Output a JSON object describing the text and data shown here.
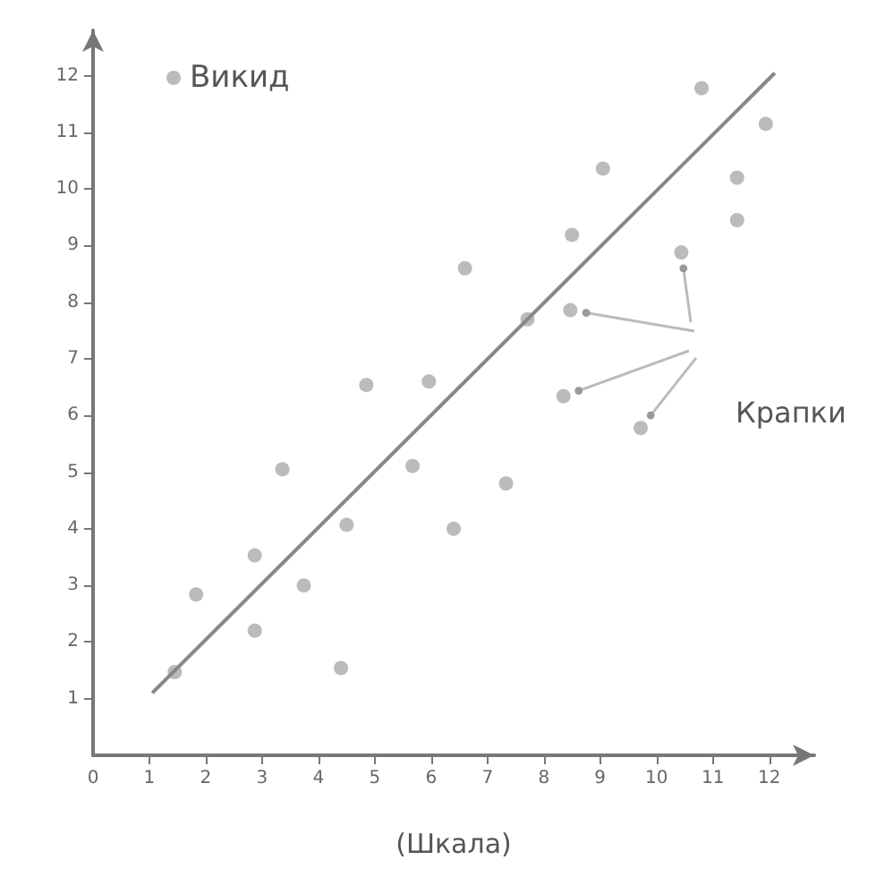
{
  "chart_data": {
    "type": "scatter",
    "xlabel": "(Шкала)",
    "annotations": [
      "Крапки"
    ],
    "xlim": [
      0,
      12.8
    ],
    "ylim": [
      0,
      12.8
    ],
    "xticks": [
      {
        "value": 0,
        "label": "0"
      },
      1,
      2,
      3,
      4,
      5,
      6,
      7,
      8,
      9,
      10,
      11,
      12
    ],
    "yticks": [
      1,
      2,
      3,
      4,
      5,
      6,
      7,
      8,
      9,
      10,
      11,
      12
    ],
    "legend": "top left",
    "grid": false,
    "series": [
      {
        "name": "Викид",
        "color": "#aaaaaa",
        "marker": "circle",
        "x": [
          1.45,
          1.83,
          2.87,
          2.87,
          3.74,
          3.36,
          4.4,
          4.5,
          4.85,
          5.67,
          5.96,
          6.4,
          6.6,
          7.33,
          7.71,
          8.35,
          8.47,
          8.5,
          9.05,
          9.72,
          10.44,
          10.8,
          11.43,
          11.43,
          11.94
        ],
        "values": [
          1.47,
          2.84,
          2.2,
          3.53,
          3.0,
          5.05,
          1.54,
          4.07,
          6.54,
          5.11,
          6.6,
          4.0,
          8.6,
          4.8,
          7.7,
          6.34,
          7.86,
          9.19,
          10.36,
          5.78,
          8.88,
          11.78,
          10.2,
          9.45,
          11.15
        ]
      },
      {
        "type": "line",
        "color": "#888888",
        "x": [
          1.05,
          12.1
        ],
        "values": [
          1.1,
          12.05
        ]
      }
    ]
  }
}
